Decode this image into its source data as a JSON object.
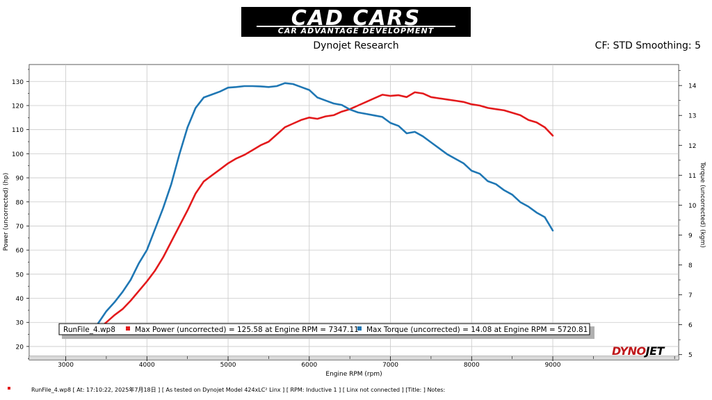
{
  "header": {
    "logo_main": "CAD CARS",
    "logo_sub": "CAR ADVANTAGE DEVELOPMENT",
    "subtitle": "Dynojet Research",
    "cf_info": "CF: STD Smoothing: 5"
  },
  "footer": {
    "note": "RunFile_4.wp8  [  At:  17:10:22,  2025年7月18日 ]  [ As tested on Dynojet Model 424xLC² Linx ]  [ RPM: Inductive 1 ]  [ Linx not connected ]  [Title:  ]    Notes:",
    "brand_logo_a": "DYNO",
    "brand_logo_b": "JET"
  },
  "legend": {
    "run_name": "RunFile_4.wp8",
    "power_text": "Max Power (uncorrected) = 125.58 at Engine RPM = 7347.11",
    "torque_text": "Max Torque (uncorrected) = 14.08 at Engine RPM = 5720.81"
  },
  "colors": {
    "power": "#e31a1c",
    "torque": "#1f77b4",
    "frame_bg": "#f0f0f0",
    "plot_bg": "#ffffff"
  },
  "chart_data": {
    "type": "line",
    "title": "",
    "xlabel": "Engine RPM (rpm)",
    "ylabel": "Power (uncorrected) (hp)",
    "y2label": "Torque (uncorrected) (kgm)",
    "xlim": [
      2550,
      10550
    ],
    "ylim": [
      14.5,
      137
    ],
    "y2lim": [
      4.83,
      14.7
    ],
    "x_ticks": [
      3000,
      4000,
      5000,
      6000,
      7000,
      8000,
      9000
    ],
    "y_ticks": [
      20,
      30,
      40,
      50,
      60,
      70,
      80,
      90,
      100,
      110,
      120,
      130
    ],
    "y2_ticks": [
      5,
      6,
      7,
      8,
      9,
      10,
      11,
      12,
      13,
      14
    ],
    "legend_position": "bottom-left",
    "series": [
      {
        "name": "Max Power (uncorrected)",
        "axis": "left",
        "x": [
          3400,
          3500,
          3600,
          3700,
          3800,
          3900,
          4000,
          4100,
          4200,
          4300,
          4400,
          4500,
          4600,
          4700,
          4800,
          4900,
          5000,
          5100,
          5200,
          5300,
          5400,
          5500,
          5600,
          5700,
          5800,
          5900,
          6000,
          6100,
          6200,
          6300,
          6400,
          6500,
          6600,
          6700,
          6800,
          6900,
          7000,
          7100,
          7200,
          7300,
          7400,
          7500,
          7600,
          7700,
          7800,
          7900,
          8000,
          8100,
          8200,
          8300,
          8400,
          8500,
          8600,
          8700,
          8800,
          8900,
          9000
        ],
        "values": [
          27,
          30,
          33,
          35.5,
          39,
          43,
          47,
          51.5,
          57,
          63.5,
          70,
          76.5,
          83.5,
          88.5,
          91,
          93.5,
          96,
          98,
          99.5,
          101.5,
          103.5,
          105,
          108,
          111,
          112.5,
          114,
          115,
          114.5,
          115.5,
          116,
          117.5,
          118.5,
          120,
          121.5,
          123,
          124.5,
          124,
          124.3,
          123.5,
          125.5,
          125,
          123.5,
          123,
          122.5,
          122,
          121.5,
          120.5,
          120,
          119,
          118.5,
          118,
          117,
          116,
          114,
          113,
          111,
          107.5
        ]
      },
      {
        "name": "Max Torque (uncorrected)",
        "axis": "right",
        "x": [
          3400,
          3500,
          3600,
          3700,
          3800,
          3900,
          4000,
          4100,
          4200,
          4300,
          4400,
          4500,
          4600,
          4700,
          4800,
          4900,
          5000,
          5100,
          5200,
          5300,
          5400,
          5500,
          5600,
          5700,
          5800,
          5900,
          6000,
          6100,
          6200,
          6300,
          6400,
          6500,
          6600,
          6700,
          6800,
          6900,
          7000,
          7100,
          7200,
          7300,
          7400,
          7500,
          7600,
          7700,
          7800,
          7900,
          8000,
          8100,
          8200,
          8300,
          8400,
          8500,
          8600,
          8700,
          8800,
          8900,
          9000
        ],
        "values": [
          6.05,
          6.45,
          6.75,
          7.1,
          7.5,
          8.05,
          8.5,
          9.2,
          9.9,
          10.7,
          11.7,
          12.6,
          13.25,
          13.6,
          13.7,
          13.8,
          13.93,
          13.95,
          13.98,
          13.98,
          13.97,
          13.95,
          13.98,
          14.08,
          14.05,
          13.95,
          13.85,
          13.6,
          13.5,
          13.4,
          13.35,
          13.2,
          13.1,
          13.05,
          13.0,
          12.95,
          12.75,
          12.65,
          12.4,
          12.45,
          12.3,
          12.1,
          11.9,
          11.7,
          11.55,
          11.4,
          11.15,
          11.05,
          10.8,
          10.7,
          10.5,
          10.35,
          10.1,
          9.95,
          9.75,
          9.6,
          9.15
        ]
      }
    ]
  }
}
